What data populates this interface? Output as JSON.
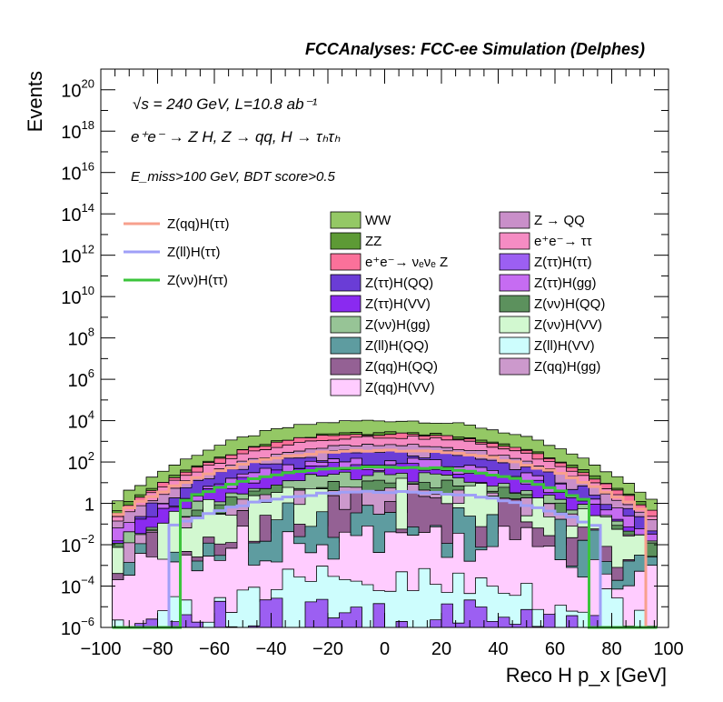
{
  "chart_data": {
    "type": "histogram",
    "title": "FCCAnalyses: FCC-ee Simulation (Delphes)",
    "xlabel": "Reco H p_x [GeV]",
    "ylabel": "Events",
    "xlim": [
      -100,
      100
    ],
    "ylim": [
      1e-06,
      1e+21
    ],
    "log_y": true,
    "x_ticks": [
      "−100",
      "−80",
      "−60",
      "−40",
      "−20",
      "0",
      "20",
      "40",
      "60",
      "80",
      "100"
    ],
    "y_ticks": [
      {
        "base": "10",
        "exp": "−6",
        "value": 1e-06
      },
      {
        "base": "10",
        "exp": "−4",
        "value": 0.0001
      },
      {
        "base": "10",
        "exp": "−2",
        "value": 0.01
      },
      {
        "base": "1",
        "exp": "",
        "value": 1
      },
      {
        "base": "10",
        "exp": "2",
        "value": 100.0
      },
      {
        "base": "10",
        "exp": "4",
        "value": 10000.0
      },
      {
        "base": "10",
        "exp": "6",
        "value": 1000000.0
      },
      {
        "base": "10",
        "exp": "8",
        "value": 100000000.0
      },
      {
        "base": "10",
        "exp": "10",
        "value": 10000000000.0
      },
      {
        "base": "10",
        "exp": "12",
        "value": 1000000000000.0
      },
      {
        "base": "10",
        "exp": "14",
        "value": 100000000000000.0
      },
      {
        "base": "10",
        "exp": "16",
        "value": 1e+16
      },
      {
        "base": "10",
        "exp": "18",
        "value": 1e+18
      },
      {
        "base": "10",
        "exp": "20",
        "value": 1e+20
      }
    ],
    "annotations": {
      "line1": "√s = 240 GeV, L=10.8 ab⁻¹",
      "line2": "e⁺e⁻ → Z H, Z → qq, H → τₕτₕ",
      "line3": "E_miss>100 GeV, BDT score>0.5"
    },
    "bins": {
      "min": -96,
      "max": 96,
      "count": 48
    },
    "stack_log10_peak": [
      4.0,
      3.4,
      3.35,
      3.2,
      2.8,
      2.4,
      2.0,
      1.8,
      1.3,
      1.0,
      0.7,
      0.2,
      -0.3,
      -0.8,
      -1.6,
      -4.0,
      -5.5
    ],
    "stack_log10_edge": [
      0.0,
      -0.5,
      -0.6,
      -0.8,
      -1.0,
      -1.3,
      -1.6,
      -1.8,
      -2.1,
      -2.3,
      -2.5,
      -2.9,
      -3.5,
      -3.6,
      -3.8,
      -6.0,
      -6.0
    ],
    "stack_colors": [
      "#94c865",
      "#5d9a35",
      "#fb719a",
      "#f58cc3",
      "#c98fc9",
      "#6a3dd6",
      "#c66cf2",
      "#8a2af0",
      "#97c496",
      "#5c915d",
      "#cc99cc",
      "#d2f8d0",
      "#946194",
      "#5e9ca0",
      "#ffccff",
      "#cdfdfd",
      "#9c5ff2"
    ],
    "line_series": [
      {
        "name": "Z(qq)H(ττ)",
        "color": "#f7a08d",
        "log10_peak": 2.55,
        "log10_edge": -0.7,
        "x_range": [
          -96,
          92
        ]
      },
      {
        "name": "Z(ll)H(ττ)",
        "color": "#9f9ff7",
        "log10_peak": 0.55,
        "log10_edge": -2.5,
        "x_range": [
          -76,
          76
        ]
      },
      {
        "name": "Z(νν)H(ττ)",
        "color": "#3bc43b",
        "log10_peak": 1.75,
        "log10_edge": -1.6,
        "x_range": [
          -72,
          72
        ]
      }
    ],
    "legend_lines": [
      "Z(qq)H(ττ)",
      "Z(ll)H(ττ)",
      "Z(νν)H(ττ)"
    ],
    "legend_fills": [
      {
        "name": "WW",
        "color": "#94c865"
      },
      {
        "name": "Z → QQ",
        "color": "#c98fc9"
      },
      {
        "name": "ZZ",
        "color": "#5d9a35"
      },
      {
        "name": "e⁺e⁻→ ττ",
        "color": "#f58cc3"
      },
      {
        "name": "e⁺e⁻→ νₑνₑ Z",
        "color": "#fb719a"
      },
      {
        "name": "Z(ττ)H(ττ)",
        "color": "#9c5ff2"
      },
      {
        "name": "Z(ττ)H(QQ)",
        "color": "#6a3dd6"
      },
      {
        "name": "Z(ττ)H(gg)",
        "color": "#c66cf2"
      },
      {
        "name": "Z(ττ)H(VV)",
        "color": "#8a2af0"
      },
      {
        "name": "Z(νν)H(QQ)",
        "color": "#5c915d"
      },
      {
        "name": "Z(νν)H(gg)",
        "color": "#97c496"
      },
      {
        "name": "Z(νν)H(VV)",
        "color": "#d2f8d0"
      },
      {
        "name": "Z(ll)H(QQ)",
        "color": "#5e9ca0"
      },
      {
        "name": "Z(ll)H(VV)",
        "color": "#cdfdfd"
      },
      {
        "name": "Z(qq)H(QQ)",
        "color": "#946194"
      },
      {
        "name": "Z(qq)H(gg)",
        "color": "#cc99cc"
      },
      {
        "name": "Z(qq)H(VV)",
        "color": "#ffccff"
      }
    ]
  }
}
